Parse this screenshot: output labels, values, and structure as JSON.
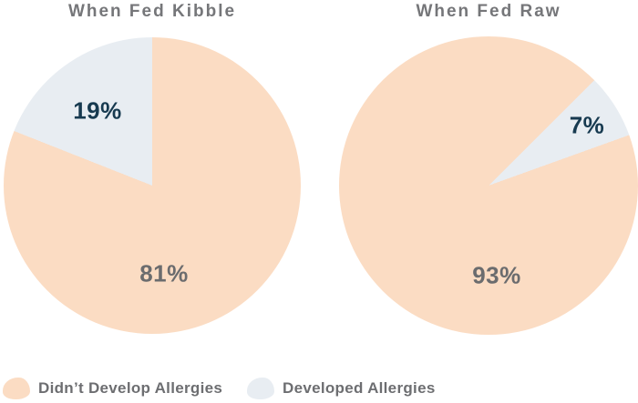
{
  "page": {
    "background": "#ffffff"
  },
  "colors": {
    "didnt_develop_slice": "#fbdcc3",
    "developed_slice": "#e8edf2",
    "percent_label_dark": "#173a50",
    "percent_label_gray": "#6b6c6e",
    "title_gray": "#757679",
    "legend_text_gray": "#6d6e71"
  },
  "chart_data": [
    {
      "type": "pie",
      "title": "When Fed Kibble",
      "start_deg": 0,
      "legend_position": "bottom-left",
      "slices": [
        {
          "label": "Didn't Develop Allergies",
          "value": 81,
          "display": "81%",
          "color": "#fbdcc3"
        },
        {
          "label": "Developed Allergies",
          "value": 19,
          "display": "19%",
          "color": "#e8edf2"
        }
      ]
    },
    {
      "type": "pie",
      "title": "When Fed Raw",
      "start_deg": 70.2,
      "legend_position": "bottom-left",
      "slices": [
        {
          "label": "Didn't Develop Allergies",
          "value": 93,
          "display": "93%",
          "color": "#fbdcc3"
        },
        {
          "label": "Developed Allergies",
          "value": 7,
          "display": "7%",
          "color": "#e8edf2"
        }
      ]
    }
  ],
  "legend": {
    "items": [
      {
        "label": "Didn’t Develop Allergies",
        "color": "#fbdcc3"
      },
      {
        "label": "Developed Allergies",
        "color": "#e8edf2"
      }
    ]
  }
}
